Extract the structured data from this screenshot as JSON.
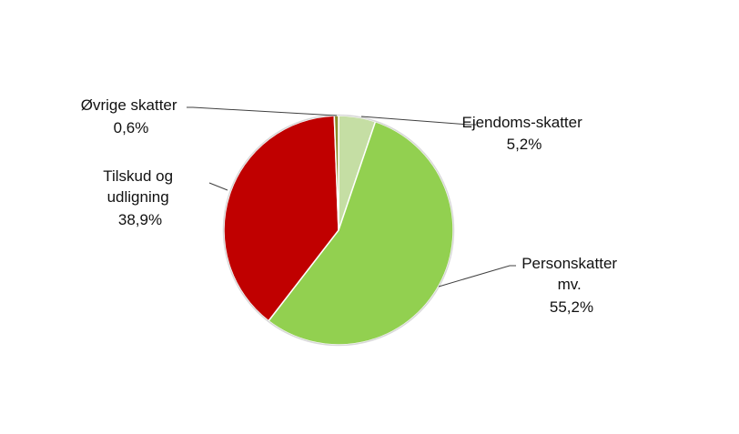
{
  "chart_data": {
    "type": "pie",
    "title": "",
    "start_angle_deg": 0,
    "direction": "clockwise",
    "slices": [
      {
        "label_lines": [
          "Ejendoms-skatter"
        ],
        "value_label": "5,2%",
        "value": 5.2,
        "color": "#c5dea4"
      },
      {
        "label_lines": [
          "Personskatter",
          "mv."
        ],
        "value_label": "55,2%",
        "value": 55.2,
        "color": "#92d050"
      },
      {
        "label_lines": [
          "Tilskud og",
          "udligning"
        ],
        "value_label": "38,9%",
        "value": 38.9,
        "color": "#c00000"
      },
      {
        "label_lines": [
          "Øvrige skatter"
        ],
        "value_label": "0,6%",
        "value": 0.6,
        "color": "#8b8e2a"
      }
    ],
    "legend": "none"
  }
}
